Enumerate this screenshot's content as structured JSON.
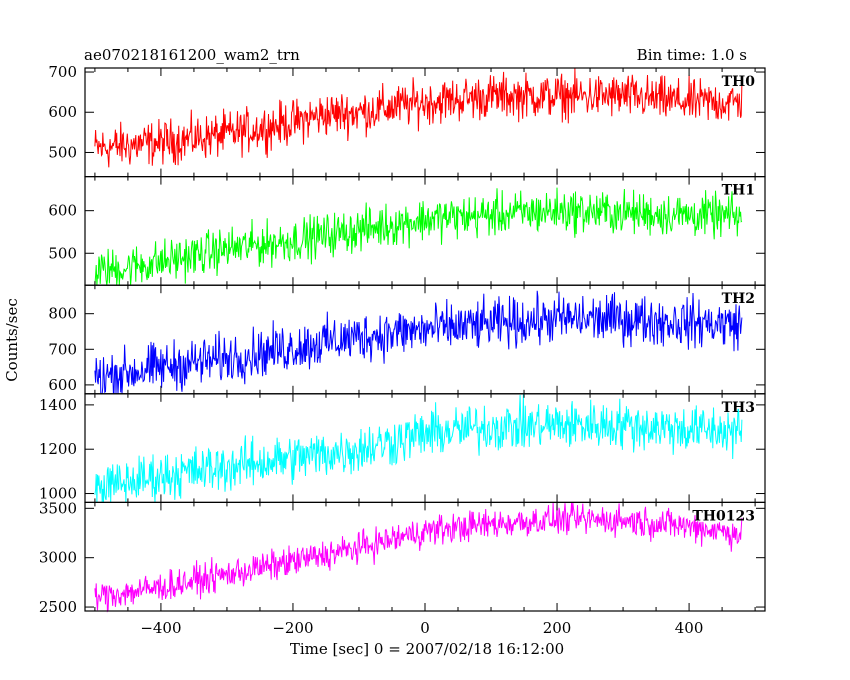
{
  "header": {
    "title": "ae070218161200_wam2_trn",
    "bin_time": "Bin time: 1.0 s"
  },
  "chart_data": {
    "type": "line",
    "xlabel": "Time [sec] 0 = 2007/02/18 16:12:00",
    "ylabel": "Counts/sec",
    "xlim": [
      -515,
      515
    ],
    "x_ticks": [
      -400,
      -200,
      0,
      200,
      400
    ],
    "x_tick_labels": [
      "−400",
      "−200",
      "0",
      "200",
      "400"
    ],
    "grid": false,
    "panels": [
      {
        "label": "TH0",
        "color": "#ff0000",
        "ylim": [
          440,
          710
        ],
        "y_ticks": [
          500,
          600,
          700
        ],
        "x": [
          -500,
          -400,
          -300,
          -200,
          -150,
          -100,
          0,
          100,
          200,
          300,
          400,
          480
        ],
        "y": [
          510,
          525,
          545,
          575,
          595,
          600,
          625,
          640,
          640,
          640,
          625,
          625
        ],
        "noise": 60
      },
      {
        "label": "TH1",
        "color": "#00ff00",
        "ylim": [
          425,
          680
        ],
        "y_ticks": [
          500,
          600
        ],
        "x": [
          -500,
          -400,
          -300,
          -200,
          -100,
          0,
          100,
          200,
          300,
          400,
          480
        ],
        "y": [
          455,
          480,
          510,
          530,
          555,
          580,
          590,
          600,
          595,
          590,
          585
        ],
        "noise": 55
      },
      {
        "label": "TH2",
        "color": "#0000ff",
        "ylim": [
          575,
          880
        ],
        "y_ticks": [
          600,
          700,
          800
        ],
        "x": [
          -500,
          -400,
          -300,
          -200,
          -100,
          0,
          100,
          200,
          300,
          400,
          480
        ],
        "y": [
          620,
          650,
          675,
          705,
          735,
          755,
          770,
          785,
          785,
          775,
          770
        ],
        "noise": 75
      },
      {
        "label": "TH3",
        "color": "#00ffff",
        "ylim": [
          960,
          1450
        ],
        "y_ticks": [
          1000,
          1200,
          1400
        ],
        "x": [
          -500,
          -400,
          -300,
          -200,
          -100,
          0,
          100,
          200,
          300,
          400,
          480
        ],
        "y": [
          1020,
          1080,
          1120,
          1160,
          1200,
          1270,
          1300,
          1310,
          1310,
          1290,
          1280
        ],
        "noise": 120
      },
      {
        "label": "TH0123",
        "color": "#ff00ff",
        "ylim": [
          2460,
          3560
        ],
        "y_ticks": [
          2500,
          3000,
          3500
        ],
        "x": [
          -500,
          -400,
          -300,
          -200,
          -100,
          0,
          100,
          200,
          300,
          400,
          480
        ],
        "y": [
          2600,
          2700,
          2830,
          2960,
          3100,
          3270,
          3340,
          3390,
          3380,
          3320,
          3240
        ],
        "noise": 170
      }
    ]
  }
}
